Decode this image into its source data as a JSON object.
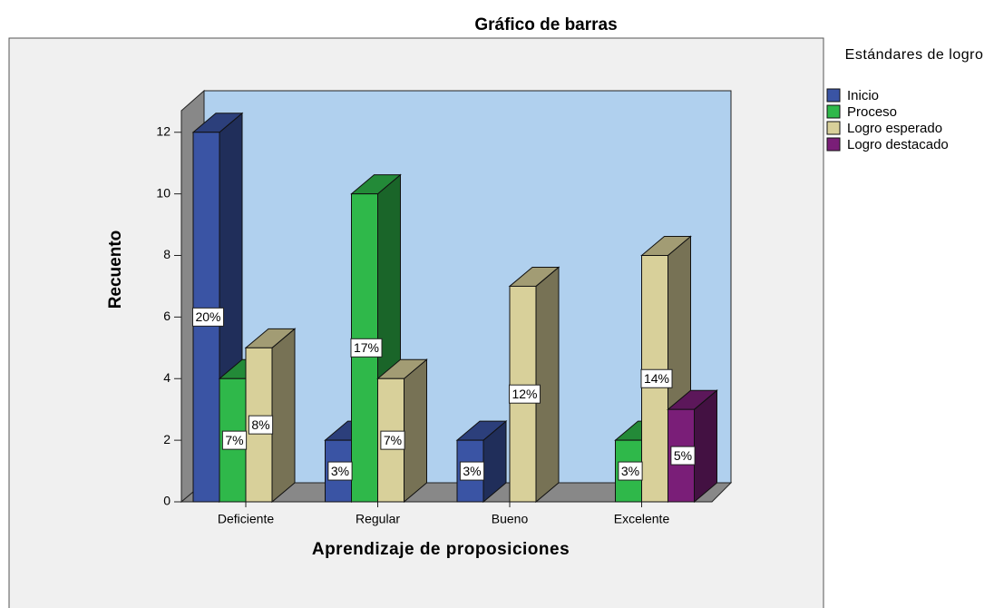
{
  "chart_data": {
    "type": "bar3d",
    "title": "Gráfico de barras",
    "x_label": "Aprendizaje de proposiciones",
    "y_label": "Recuento",
    "legend_title": "Estándares de logro",
    "categories": [
      "Deficiente",
      "Regular",
      "Bueno",
      "Excelente"
    ],
    "series": [
      {
        "name": "Inicio",
        "color": "#3a54a4",
        "values": [
          12,
          2,
          2,
          null
        ],
        "value_labels": [
          "20%",
          "3%",
          "3%",
          null
        ]
      },
      {
        "name": "Proceso",
        "color": "#2fb84a",
        "values": [
          4,
          10,
          null,
          2
        ],
        "value_labels": [
          "7%",
          "17%",
          null,
          "3%"
        ]
      },
      {
        "name": "Logro esperado",
        "color": "#d8d09a",
        "values": [
          5,
          4,
          7,
          8
        ],
        "value_labels": [
          "8%",
          "7%",
          "12%",
          "14%"
        ]
      },
      {
        "name": "Logro destacado",
        "color": "#7a1e78",
        "values": [
          null,
          null,
          null,
          3
        ],
        "value_labels": [
          null,
          null,
          null,
          "5%"
        ]
      }
    ],
    "ylim": [
      0,
      12.7
    ],
    "yticks": [
      0,
      2,
      4,
      6,
      8,
      10,
      12
    ],
    "legend": "right"
  }
}
